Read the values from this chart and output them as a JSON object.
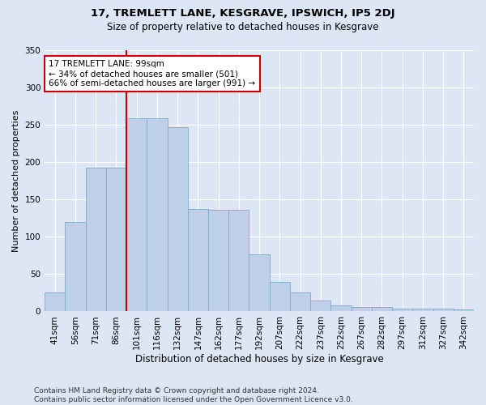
{
  "title": "17, TREMLETT LANE, KESGRAVE, IPSWICH, IP5 2DJ",
  "subtitle": "Size of property relative to detached houses in Kesgrave",
  "xlabel": "Distribution of detached houses by size in Kesgrave",
  "ylabel": "Number of detached properties",
  "categories": [
    "41sqm",
    "56sqm",
    "71sqm",
    "86sqm",
    "101sqm",
    "116sqm",
    "132sqm",
    "147sqm",
    "162sqm",
    "177sqm",
    "192sqm",
    "207sqm",
    "222sqm",
    "237sqm",
    "252sqm",
    "267sqm",
    "282sqm",
    "297sqm",
    "312sqm",
    "327sqm",
    "342sqm"
  ],
  "values": [
    25,
    120,
    192,
    192,
    258,
    258,
    246,
    137,
    136,
    136,
    76,
    39,
    25,
    15,
    8,
    6,
    6,
    4,
    4,
    4,
    3
  ],
  "bar_color": "#bdd0e8",
  "bar_edge_color": "#7aaacf",
  "vline_color": "#cc0000",
  "vline_index": 4,
  "annotation_text": "17 TREMLETT LANE: 99sqm\n← 34% of detached houses are smaller (501)\n66% of semi-detached houses are larger (991) →",
  "annotation_box_color": "#ffffff",
  "annotation_box_edge": "#cc0000",
  "ylim": [
    0,
    350
  ],
  "yticks": [
    0,
    50,
    100,
    150,
    200,
    250,
    300,
    350
  ],
  "footnote": "Contains HM Land Registry data © Crown copyright and database right 2024.\nContains public sector information licensed under the Open Government Licence v3.0.",
  "bg_color": "#dce6f5",
  "plot_bg_color": "#dce6f5",
  "grid_color": "#ffffff",
  "title_fontsize": 9.5,
  "subtitle_fontsize": 8.5,
  "ylabel_fontsize": 8,
  "xlabel_fontsize": 8.5,
  "tick_fontsize": 7.5,
  "annot_fontsize": 7.5,
  "footnote_fontsize": 6.5
}
